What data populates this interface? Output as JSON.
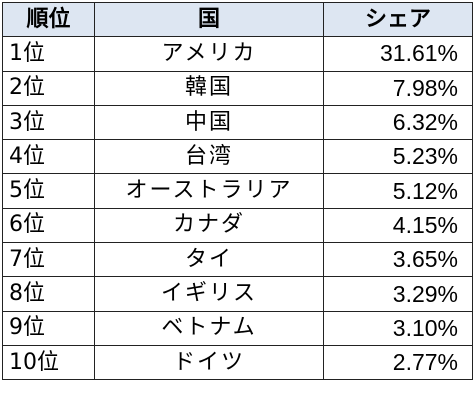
{
  "table": {
    "headers": {
      "rank": "順位",
      "country": "国",
      "share": "シェア"
    },
    "header_bg": "#dde6f2",
    "rows": [
      {
        "rank": "1位",
        "country": "アメリカ",
        "share": "31.61%"
      },
      {
        "rank": "2位",
        "country": "韓国",
        "share": "7.98%"
      },
      {
        "rank": "3位",
        "country": "中国",
        "share": "6.32%"
      },
      {
        "rank": "4位",
        "country": "台湾",
        "share": "5.23%"
      },
      {
        "rank": "5位",
        "country": "オーストラリア",
        "share": "5.12%"
      },
      {
        "rank": "6位",
        "country": "カナダ",
        "share": "4.15%"
      },
      {
        "rank": "7位",
        "country": "タイ",
        "share": "3.65%"
      },
      {
        "rank": "8位",
        "country": "イギリス",
        "share": "3.29%"
      },
      {
        "rank": "9位",
        "country": "ベトナム",
        "share": "3.10%"
      },
      {
        "rank": "10位",
        "country": "ドイツ",
        "share": "2.77%"
      }
    ]
  }
}
